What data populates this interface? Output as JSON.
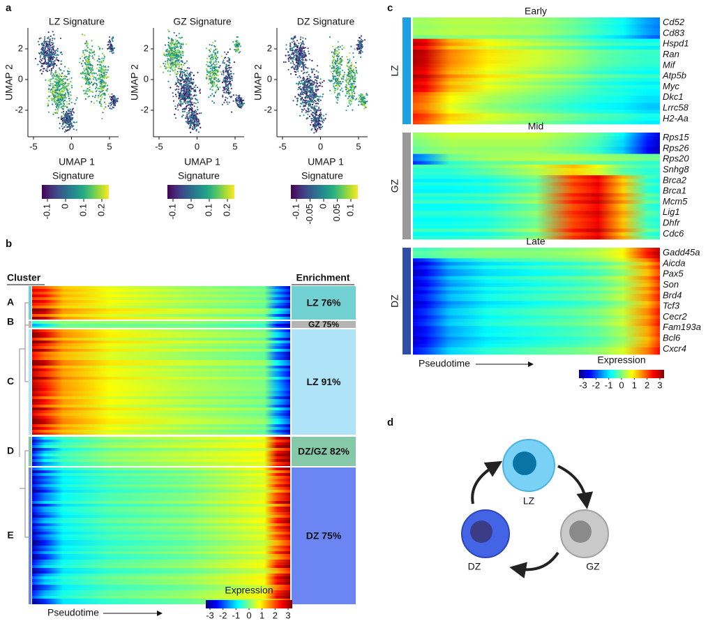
{
  "panel_a": {
    "label": "a",
    "plots": [
      {
        "title": "LZ Signature",
        "x_label": "UMAP 1",
        "y_label": "UMAP 2",
        "xticks": [
          -5,
          0,
          5
        ],
        "yticks": [
          -2,
          0,
          2
        ],
        "colorbar_title": "Signature",
        "colorbar_ticks": [
          -0.1,
          0,
          0.1,
          0.2
        ]
      },
      {
        "title": "GZ Signature",
        "x_label": "UMAP 1",
        "y_label": "UMAP 2",
        "xticks": [
          -5,
          0,
          5
        ],
        "yticks": [
          -2,
          0,
          2
        ],
        "colorbar_title": "Signature",
        "colorbar_ticks": [
          -0.1,
          0,
          0.1,
          0.2
        ]
      },
      {
        "title": "DZ Signature",
        "x_label": "UMAP 1",
        "y_label": "UMAP 2",
        "xticks": [
          -5,
          0,
          5
        ],
        "yticks": [
          -2,
          0,
          2
        ],
        "colorbar_title": "Signature",
        "colorbar_ticks": [
          -0.1,
          -0.05,
          0,
          0.05,
          0.1
        ]
      }
    ]
  },
  "panel_b": {
    "label": "b",
    "cluster_header": "Cluster",
    "enrichment_header": "Enrichment",
    "clusters": [
      {
        "name": "A",
        "enrichment": "LZ 76%",
        "color": "#71d0d2"
      },
      {
        "name": "B",
        "enrichment": "GZ 75%",
        "color": "#b4b4b4"
      },
      {
        "name": "C",
        "enrichment": "LZ 91%",
        "color": "#afe3f8"
      },
      {
        "name": "D",
        "enrichment": "DZ/GZ 82%",
        "color": "#86c9a9"
      },
      {
        "name": "E",
        "enrichment": "DZ 75%",
        "color": "#6b86f3"
      }
    ],
    "x_label": "Pseudotime",
    "colorbar_title": "Expression",
    "colorbar_ticks": [
      -3,
      -2,
      -1,
      0,
      1,
      2,
      3
    ]
  },
  "panel_c": {
    "label": "c",
    "groups": [
      {
        "zone": "LZ",
        "stage": "Early",
        "color": "#1d9fe3",
        "genes": [
          "Cd52",
          "Cd83",
          "Hspd1",
          "Ran",
          "Mif",
          "Atp5b",
          "Myc",
          "Dkc1",
          "Lrrc58",
          "H2-Aa"
        ]
      },
      {
        "zone": "GZ",
        "stage": "Mid",
        "color": "#999999",
        "genes": [
          "Rps15",
          "Rps26",
          "Rps20",
          "Snhg8",
          "Brca2",
          "Brca1",
          "Mcm5",
          "Lig1",
          "Dhfr",
          "Cdc6"
        ]
      },
      {
        "zone": "DZ",
        "stage": "Late",
        "color": "#2f4ea6",
        "genes": [
          "Gadd45a",
          "Aicda",
          "Pax5",
          "Son",
          "Brd4",
          "Tcf3",
          "Cecr2",
          "Fam193a",
          "Bcl6",
          "Cxcr4"
        ]
      }
    ],
    "x_label": "Pseudotime",
    "colorbar_title": "Expression",
    "colorbar_ticks": [
      -3,
      -2,
      -1,
      0,
      1,
      2,
      3
    ]
  },
  "panel_d": {
    "label": "d",
    "nodes": [
      "LZ",
      "GZ",
      "DZ"
    ]
  }
}
